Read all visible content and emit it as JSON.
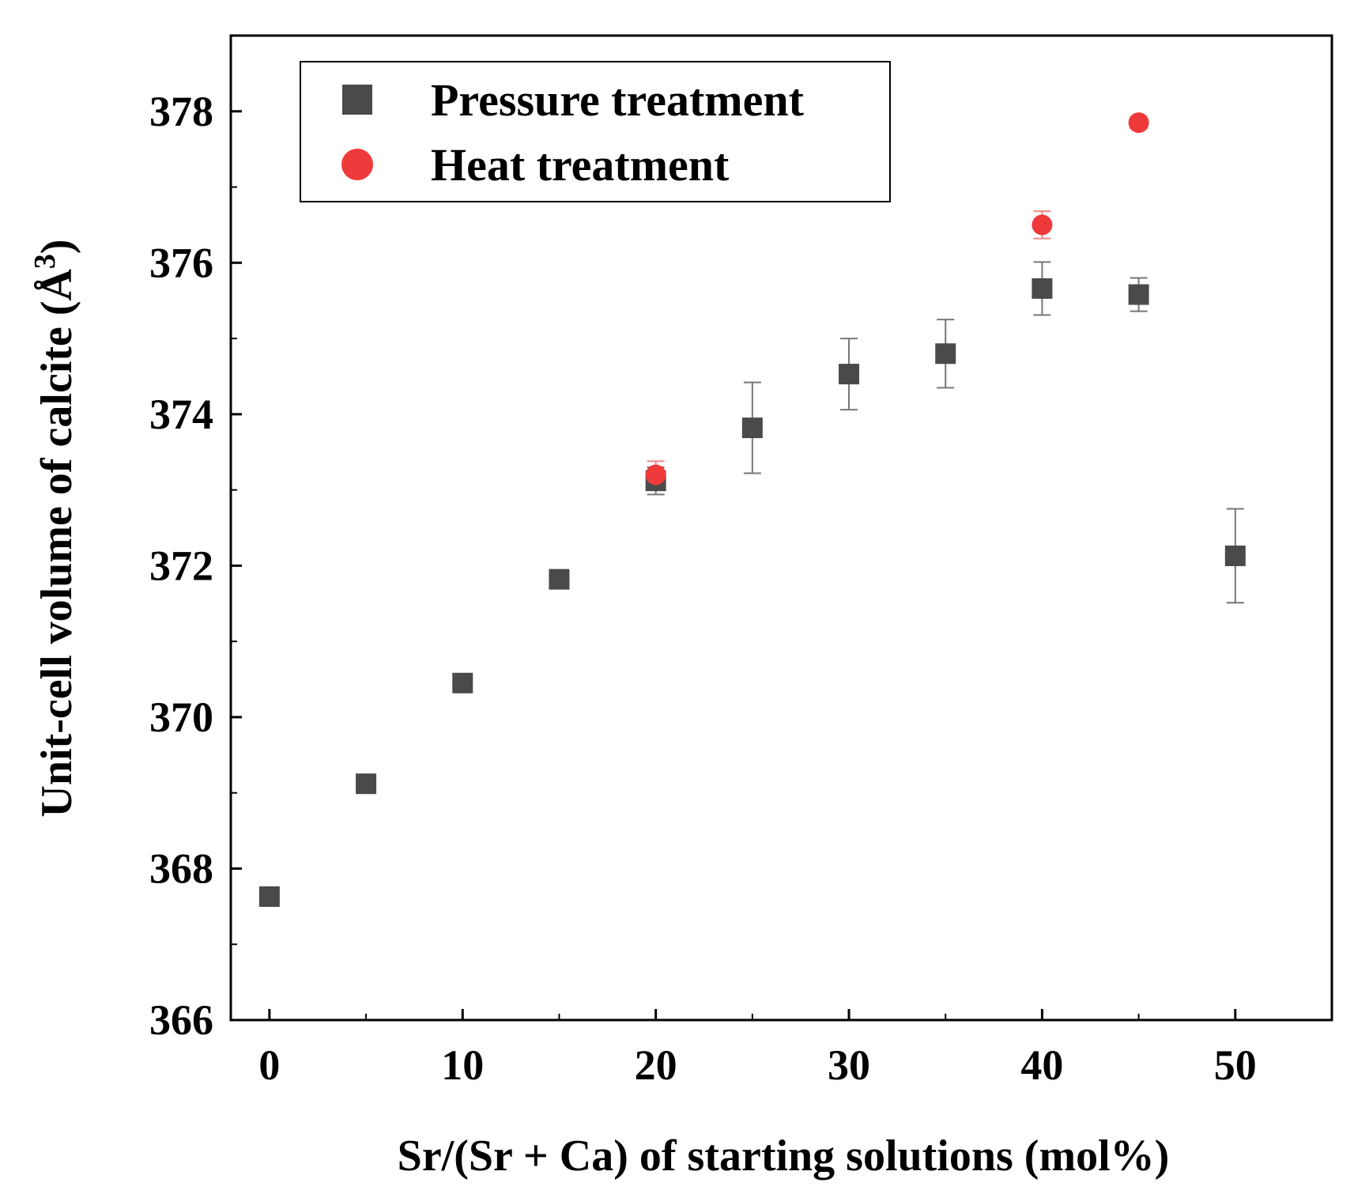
{
  "chart_data": {
    "type": "scatter",
    "title": "",
    "xlabel": "Sr/(Sr + Ca) of starting solutions (mol%)",
    "ylabel": "Unit-cell volume of calcite (Å",
    "ylabel_superscript": "3",
    "ylabel_close": ")",
    "xlim": [
      -2,
      55
    ],
    "ylim": [
      366,
      379
    ],
    "xticks": [
      0,
      10,
      20,
      30,
      40,
      50
    ],
    "xtick_labels": [
      "0",
      "10",
      "20",
      "30",
      "40",
      "50"
    ],
    "yticks": [
      366,
      368,
      370,
      372,
      374,
      376,
      378
    ],
    "ytick_labels": [
      "366",
      "368",
      "370",
      "372",
      "374",
      "376",
      "378"
    ],
    "grid": false,
    "legend_position": "top-left",
    "series": [
      {
        "name": "Pressure treatment",
        "marker": "square",
        "color": "#4a4a4a",
        "points": [
          {
            "x": 0,
            "y": 367.63,
            "err": 0
          },
          {
            "x": 5,
            "y": 369.12,
            "err": 0
          },
          {
            "x": 10,
            "y": 370.45,
            "err": 0
          },
          {
            "x": 15,
            "y": 371.82,
            "err": 0
          },
          {
            "x": 20,
            "y": 373.12,
            "err": 0.18
          },
          {
            "x": 25,
            "y": 373.82,
            "err": 0.6
          },
          {
            "x": 30,
            "y": 374.53,
            "err": 0.47
          },
          {
            "x": 35,
            "y": 374.8,
            "err": 0.45
          },
          {
            "x": 40,
            "y": 375.66,
            "err": 0.35
          },
          {
            "x": 45,
            "y": 375.58,
            "err": 0.22
          },
          {
            "x": 50,
            "y": 372.13,
            "err": 0.62
          }
        ]
      },
      {
        "name": "Heat treatment",
        "marker": "circle",
        "color": "#ee3a3a",
        "points": [
          {
            "x": 20,
            "y": 373.2,
            "err": 0.18
          },
          {
            "x": 40,
            "y": 376.5,
            "err": 0.18
          },
          {
            "x": 45,
            "y": 377.85,
            "err": 0.08
          }
        ]
      }
    ]
  }
}
